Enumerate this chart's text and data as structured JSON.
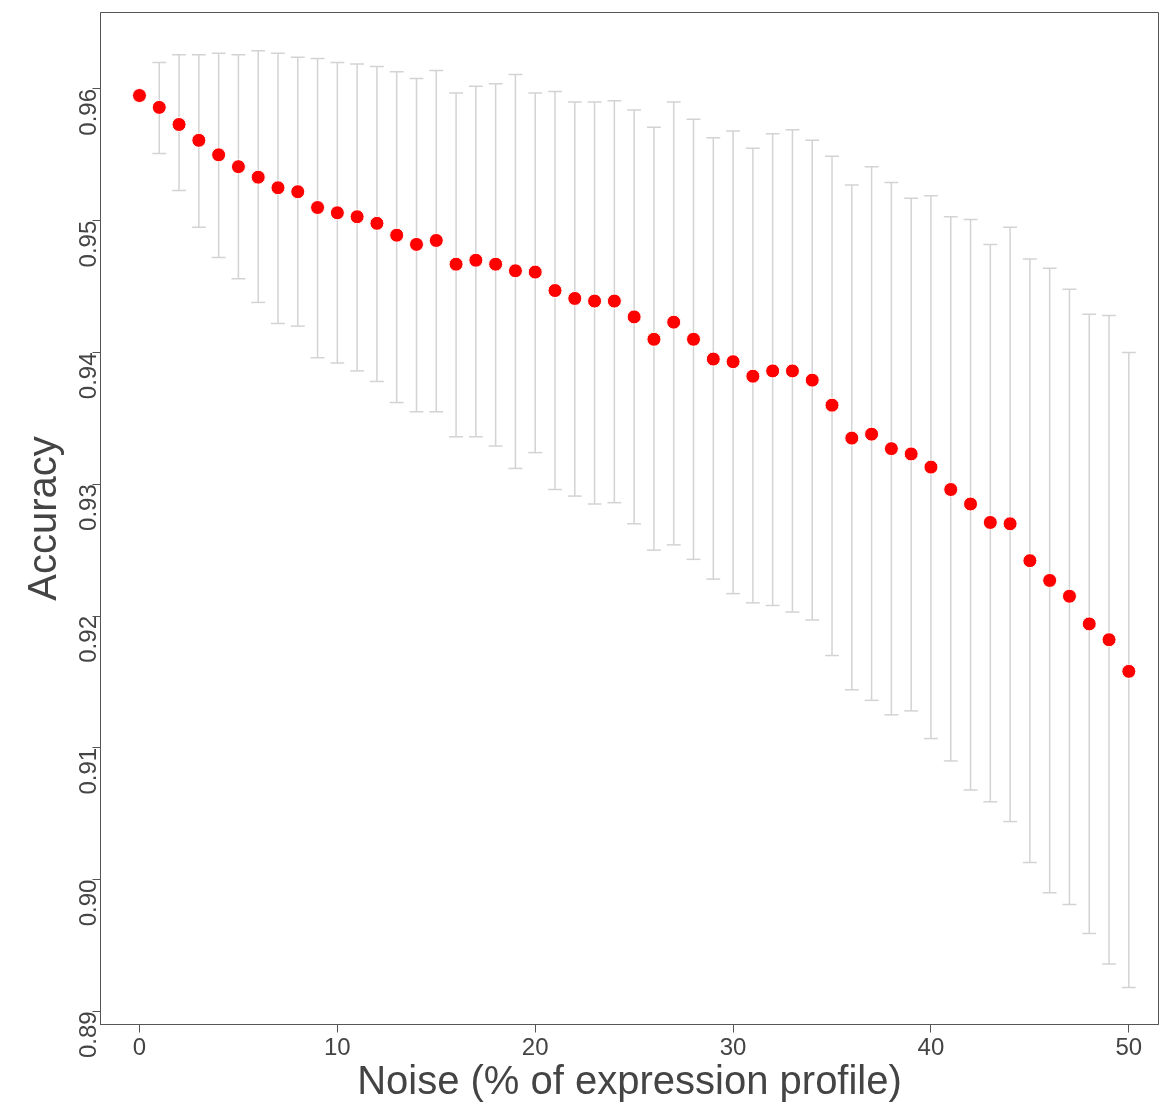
{
  "chart_data": {
    "type": "scatter",
    "xlabel": "Noise (% of expression profile)",
    "ylabel": "Accuracy",
    "x": [
      0,
      1,
      2,
      3,
      4,
      5,
      6,
      7,
      8,
      9,
      10,
      11,
      12,
      13,
      14,
      15,
      16,
      17,
      18,
      19,
      20,
      21,
      22,
      23,
      24,
      25,
      26,
      27,
      28,
      29,
      30,
      31,
      32,
      33,
      34,
      35,
      36,
      37,
      38,
      39,
      40,
      41,
      42,
      43,
      44,
      45,
      46,
      47,
      48,
      49,
      50
    ],
    "series": [
      {
        "color": "#ff0000",
        "values": [
          0.9595,
          0.9586,
          0.9573,
          0.9561,
          0.955,
          0.9541,
          0.9533,
          0.9525,
          0.9522,
          0.951,
          0.9506,
          0.9503,
          0.9498,
          0.9489,
          0.9482,
          0.9485,
          0.9467,
          0.947,
          0.9467,
          0.9462,
          0.9461,
          0.9447,
          0.9441,
          0.9439,
          0.9439,
          0.9427,
          0.941,
          0.9423,
          0.941,
          0.9395,
          0.9393,
          0.9382,
          0.9386,
          0.9386,
          0.9379,
          0.936,
          0.9335,
          0.9338,
          0.9327,
          0.9323,
          0.9313,
          0.9296,
          0.9285,
          0.9271,
          0.927,
          0.9242,
          0.9227,
          0.9215,
          0.9194,
          0.9182,
          0.9158
        ],
        "errors": [
          null,
          [
            0.9551,
            0.962
          ],
          [
            0.9523,
            0.9626
          ],
          [
            0.9495,
            0.9626
          ],
          [
            0.9472,
            0.9627
          ],
          [
            0.9456,
            0.9626
          ],
          [
            0.9438,
            0.9629
          ],
          [
            0.9422,
            0.9627
          ],
          [
            0.942,
            0.9624
          ],
          [
            0.9396,
            0.9623
          ],
          [
            0.9392,
            0.962
          ],
          [
            0.9386,
            0.9619
          ],
          [
            0.9378,
            0.9617
          ],
          [
            0.9362,
            0.9613
          ],
          [
            0.9355,
            0.9608
          ],
          [
            0.9355,
            0.9614
          ],
          [
            0.9336,
            0.9597
          ],
          [
            0.9336,
            0.9602
          ],
          [
            0.9329,
            0.9604
          ],
          [
            0.9312,
            0.9611
          ],
          [
            0.9324,
            0.9597
          ],
          [
            0.9296,
            0.9598
          ],
          [
            0.9291,
            0.959
          ],
          [
            0.9285,
            0.959
          ],
          [
            0.9286,
            0.9591
          ],
          [
            0.927,
            0.9584
          ],
          [
            0.925,
            0.9571
          ],
          [
            0.9254,
            0.959
          ],
          [
            0.9243,
            0.9577
          ],
          [
            0.9228,
            0.9563
          ],
          [
            0.9217,
            0.9568
          ],
          [
            0.921,
            0.9555
          ],
          [
            0.9208,
            0.9566
          ],
          [
            0.9203,
            0.9569
          ],
          [
            0.9197,
            0.9561
          ],
          [
            0.917,
            0.9549
          ],
          [
            0.9144,
            0.9527
          ],
          [
            0.9136,
            0.9541
          ],
          [
            0.9125,
            0.9529
          ],
          [
            0.9128,
            0.9517
          ],
          [
            0.9107,
            0.9519
          ],
          [
            0.909,
            0.9503
          ],
          [
            0.9068,
            0.9501
          ],
          [
            0.9059,
            0.9482
          ],
          [
            0.9044,
            0.9495
          ],
          [
            0.9013,
            0.9471
          ],
          [
            0.899,
            0.9464
          ],
          [
            0.8981,
            0.9448
          ],
          [
            0.8959,
            0.9429
          ],
          [
            0.8936,
            0.9428
          ],
          [
            0.8918,
            0.94
          ]
        ]
      }
    ],
    "xlim": [
      -1.97,
      51.5
    ],
    "ylim": [
      0.889,
      0.9658
    ],
    "xticks": [
      0,
      10,
      20,
      30,
      40,
      50
    ],
    "yticks": [
      {
        "value": 0.89,
        "label": "0.89"
      },
      {
        "value": 0.9,
        "label": "0.90"
      },
      {
        "value": 0.91,
        "label": "0.91"
      },
      {
        "value": 0.92,
        "label": "0.92"
      },
      {
        "value": 0.93,
        "label": "0.93"
      },
      {
        "value": 0.94,
        "label": "0.94"
      },
      {
        "value": 0.95,
        "label": "0.95"
      },
      {
        "value": 0.96,
        "label": "0.96"
      }
    ],
    "grid": false,
    "marker": "circle"
  }
}
